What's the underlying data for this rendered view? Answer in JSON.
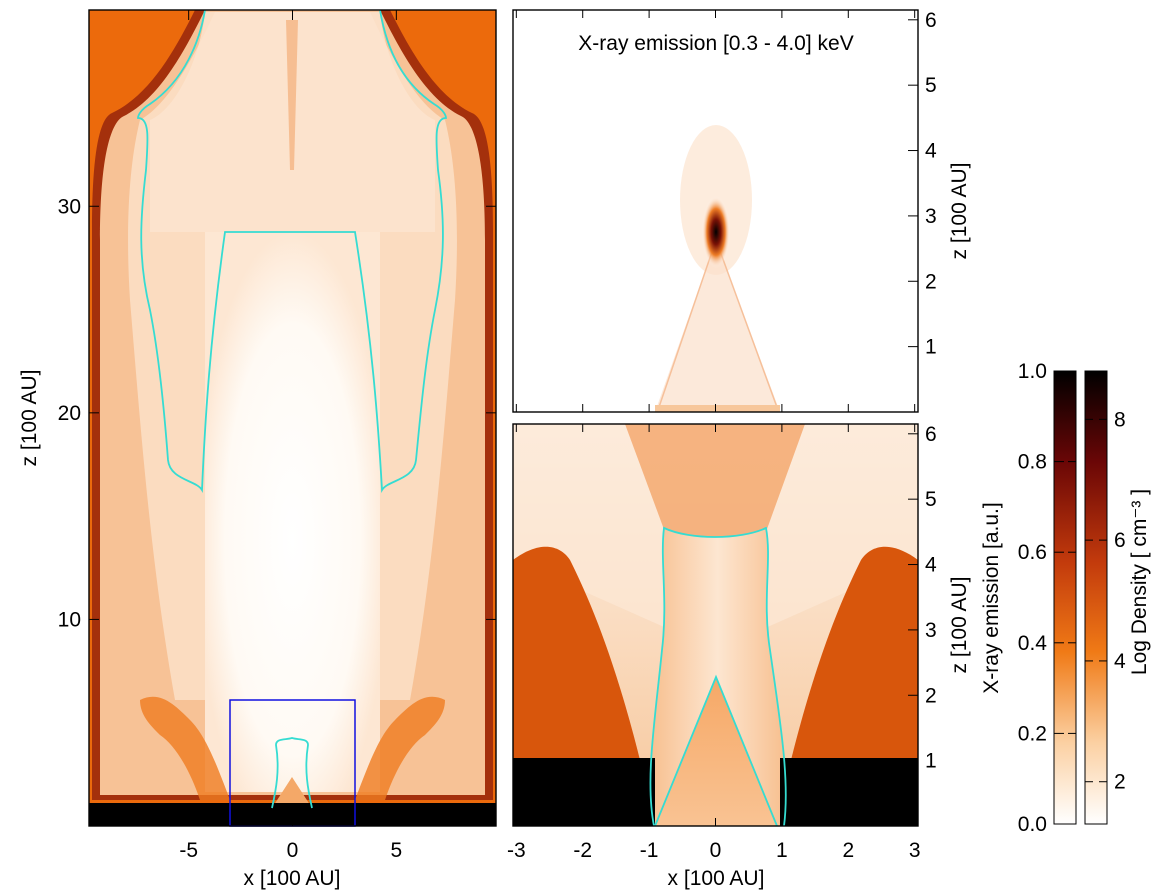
{
  "figure": {
    "colors": {
      "contour": "#35dcd2",
      "zoom_box": "#1010e0",
      "background": "#ffffff"
    }
  },
  "chart_data": [
    {
      "type": "heatmap",
      "panel": "left",
      "quantity": "Log Density",
      "xlabel": "x [100 AU]",
      "ylabel": "z [100 AU]",
      "xlim": [
        -9.8,
        9.8
      ],
      "ylim": [
        0,
        39.5
      ],
      "xticks": [
        -5,
        0,
        5
      ],
      "yticks": [
        10,
        20,
        30
      ],
      "zoom_box": {
        "x": [
          -3,
          3
        ],
        "z": [
          0,
          6.1
        ]
      }
    },
    {
      "type": "heatmap",
      "panel": "top-right",
      "title": "X-ray emission [0.3 - 4.0] keV",
      "quantity": "X-ray emission",
      "ylabel": "z [100 AU]",
      "xlim": [
        -3.05,
        3.05
      ],
      "ylim": [
        0,
        6.15
      ],
      "yticks": [
        1,
        2,
        3,
        4,
        5,
        6
      ],
      "peak": {
        "x": 0,
        "z": 2.7
      }
    },
    {
      "type": "heatmap",
      "panel": "bottom-right",
      "quantity": "Log Density",
      "xlabel": "x [100 AU]",
      "ylabel": "z [100 AU]",
      "xlim": [
        -3.05,
        3.05
      ],
      "ylim": [
        0,
        6.15
      ],
      "xticks": [
        -3,
        -2,
        -1,
        0,
        1,
        2,
        3
      ],
      "yticks": [
        1,
        2,
        3,
        4,
        5,
        6
      ]
    },
    {
      "type": "colorbar",
      "label": "X-ray emission [a.u.]",
      "range": [
        0,
        1
      ],
      "ticks": [
        "0.0",
        "0.2",
        "0.4",
        "0.6",
        "0.8",
        "1.0"
      ]
    },
    {
      "type": "colorbar",
      "label": "Log Density [ cm⁻³ ]",
      "range": [
        1.3,
        8.8
      ],
      "ticks": [
        2,
        4,
        6,
        8
      ]
    }
  ]
}
